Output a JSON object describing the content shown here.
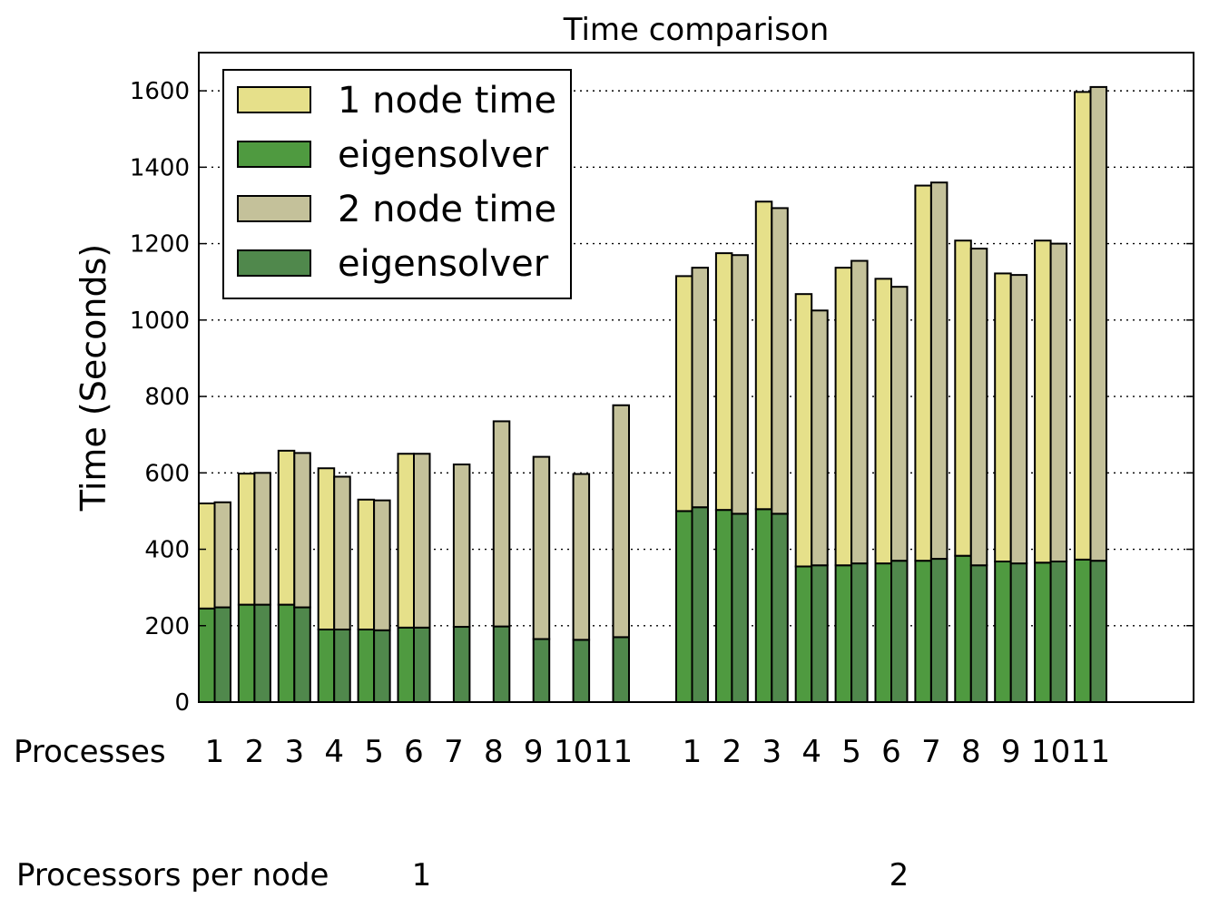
{
  "chart_data": {
    "type": "bar",
    "title": "Time comparison",
    "ylabel": "Time (Seconds)",
    "xlabel": "",
    "ylim": [
      0,
      1700
    ],
    "yticks": [
      0,
      200,
      400,
      600,
      800,
      1000,
      1200,
      1400,
      1600
    ],
    "grid": "horizontal-dotted",
    "legend_placement": "upper-left",
    "stacked": true,
    "legend": [
      {
        "label": "1 node time",
        "color": "#e6e08a"
      },
      {
        "label": "eigensolver",
        "color": "#4f9a40"
      },
      {
        "label": "2 node time",
        "color": "#c4c19a"
      },
      {
        "label": "eigensolver",
        "color": "#50884c"
      }
    ],
    "row_labels": {
      "processes": "Processes",
      "processors_per_node": "Processors per node"
    },
    "groups": [
      {
        "processors_per_node": "1",
        "processes": [
          "1",
          "2",
          "3",
          "4",
          "5",
          "6",
          "7",
          "8",
          "9",
          "10",
          "11"
        ],
        "one_node_total": [
          520,
          598,
          658,
          612,
          530,
          650,
          0,
          0,
          0,
          0,
          0
        ],
        "one_node_eigensolver": [
          245,
          255,
          255,
          190,
          190,
          195,
          0,
          0,
          0,
          0,
          0
        ],
        "two_node_total": [
          523,
          600,
          652,
          590,
          528,
          650,
          622,
          735,
          642,
          597,
          777
        ],
        "two_node_eigensolver": [
          248,
          255,
          248,
          190,
          188,
          195,
          197,
          198,
          165,
          163,
          170
        ]
      },
      {
        "processors_per_node": "2",
        "processes": [
          "1",
          "2",
          "3",
          "4",
          "5",
          "6",
          "7",
          "8",
          "9",
          "10",
          "11"
        ],
        "one_node_total": [
          1115,
          1175,
          1310,
          1068,
          1137,
          1108,
          1352,
          1208,
          1122,
          1208,
          1597
        ],
        "one_node_eigensolver": [
          500,
          503,
          505,
          355,
          358,
          363,
          370,
          383,
          368,
          365,
          373
        ],
        "two_node_total": [
          1137,
          1170,
          1293,
          1025,
          1155,
          1087,
          1360,
          1187,
          1118,
          1200,
          1610
        ],
        "two_node_eigensolver": [
          510,
          493,
          493,
          358,
          363,
          370,
          375,
          358,
          363,
          368,
          370
        ]
      }
    ]
  }
}
